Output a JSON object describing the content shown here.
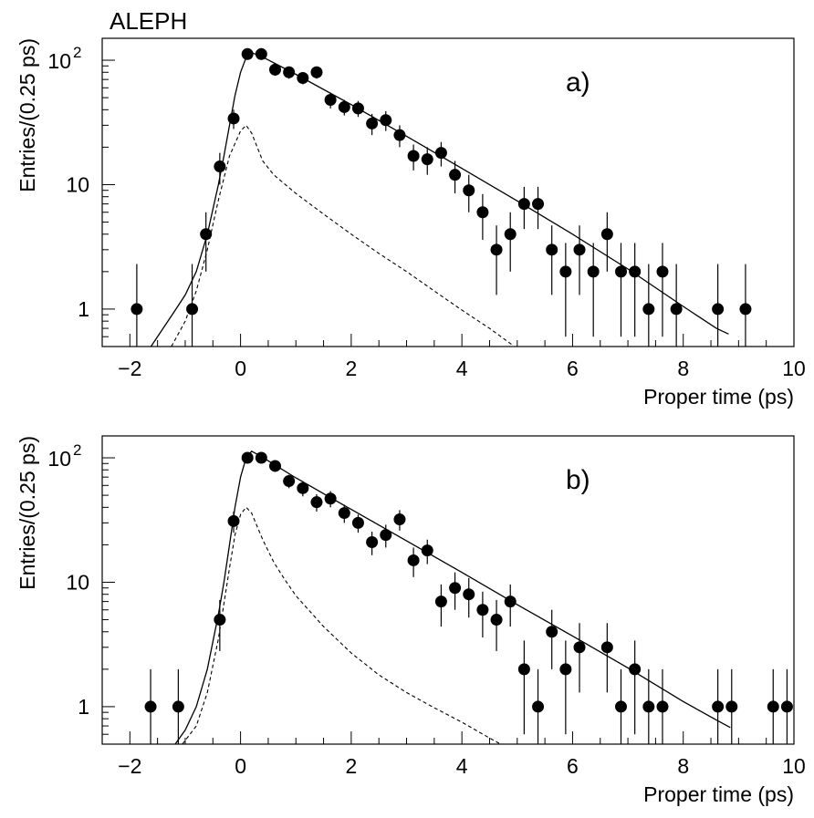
{
  "experiment_label": "ALEPH",
  "chart_data": [
    {
      "type": "scatter",
      "panel_label": "a)",
      "xlabel": "Proper time (ps)",
      "ylabel": "Entries/(0.25 ps)",
      "xlim": [
        -2.5,
        10
      ],
      "ylim": [
        0.5,
        150
      ],
      "yscale": "log",
      "x_ticks": [
        -2,
        0,
        2,
        4,
        6,
        8,
        10
      ],
      "y_ticks": [
        {
          "value": 1,
          "label": "1"
        },
        {
          "value": 10,
          "label": "10"
        },
        {
          "value": 100,
          "label": "10",
          "exponent": "2"
        }
      ],
      "points": [
        {
          "x": -1.875,
          "y": 1,
          "lo": 0.5,
          "hi": 2.3
        },
        {
          "x": -0.875,
          "y": 1,
          "lo": 0.5,
          "hi": 2.3
        },
        {
          "x": -0.625,
          "y": 4,
          "lo": 2,
          "hi": 6
        },
        {
          "x": -0.375,
          "y": 14,
          "lo": 10,
          "hi": 18
        },
        {
          "x": -0.125,
          "y": 34,
          "lo": 28,
          "hi": 40
        },
        {
          "x": 0.125,
          "y": 112,
          "lo": 101,
          "hi": 123
        },
        {
          "x": 0.375,
          "y": 112,
          "lo": 101,
          "hi": 123
        },
        {
          "x": 0.625,
          "y": 84,
          "lo": 75,
          "hi": 93
        },
        {
          "x": 0.875,
          "y": 80,
          "lo": 71,
          "hi": 89
        },
        {
          "x": 1.125,
          "y": 72,
          "lo": 64,
          "hi": 80
        },
        {
          "x": 1.375,
          "y": 80,
          "lo": 71,
          "hi": 89
        },
        {
          "x": 1.625,
          "y": 48,
          "lo": 41,
          "hi": 55
        },
        {
          "x": 1.875,
          "y": 42,
          "lo": 36,
          "hi": 48
        },
        {
          "x": 2.125,
          "y": 41,
          "lo": 35,
          "hi": 47
        },
        {
          "x": 2.375,
          "y": 31,
          "lo": 25,
          "hi": 37
        },
        {
          "x": 2.625,
          "y": 33,
          "lo": 27,
          "hi": 39
        },
        {
          "x": 2.875,
          "y": 25,
          "lo": 20,
          "hi": 30
        },
        {
          "x": 3.125,
          "y": 17,
          "lo": 13,
          "hi": 21
        },
        {
          "x": 3.375,
          "y": 16,
          "lo": 12,
          "hi": 20
        },
        {
          "x": 3.625,
          "y": 18,
          "lo": 14,
          "hi": 22
        },
        {
          "x": 3.875,
          "y": 12,
          "lo": 8.5,
          "hi": 15.5
        },
        {
          "x": 4.125,
          "y": 9,
          "lo": 6,
          "hi": 12
        },
        {
          "x": 4.375,
          "y": 6,
          "lo": 3.6,
          "hi": 8.4
        },
        {
          "x": 4.625,
          "y": 3,
          "lo": 1.3,
          "hi": 4.7
        },
        {
          "x": 4.875,
          "y": 4,
          "lo": 2,
          "hi": 6
        },
        {
          "x": 5.125,
          "y": 7,
          "lo": 4.4,
          "hi": 9.6
        },
        {
          "x": 5.375,
          "y": 7,
          "lo": 4.4,
          "hi": 9.6
        },
        {
          "x": 5.625,
          "y": 3,
          "lo": 1.3,
          "hi": 4.7
        },
        {
          "x": 5.875,
          "y": 2,
          "lo": 0.6,
          "hi": 3.4
        },
        {
          "x": 6.125,
          "y": 3,
          "lo": 1.3,
          "hi": 4.7
        },
        {
          "x": 6.375,
          "y": 2,
          "lo": 0.6,
          "hi": 3.4
        },
        {
          "x": 6.625,
          "y": 4,
          "lo": 2,
          "hi": 6
        },
        {
          "x": 6.875,
          "y": 2,
          "lo": 0.6,
          "hi": 3.4
        },
        {
          "x": 7.125,
          "y": 2,
          "lo": 0.6,
          "hi": 3.4
        },
        {
          "x": 7.375,
          "y": 1,
          "lo": 0.5,
          "hi": 2.3
        },
        {
          "x": 7.625,
          "y": 2,
          "lo": 0.6,
          "hi": 3.4
        },
        {
          "x": 7.875,
          "y": 1,
          "lo": 0.5,
          "hi": 2.3
        },
        {
          "x": 8.625,
          "y": 1,
          "lo": 0.5,
          "hi": 2.3
        },
        {
          "x": 9.125,
          "y": 1,
          "lo": 0.5,
          "hi": 2.3
        }
      ],
      "fit_curve": [
        [
          -1.62,
          0.5
        ],
        [
          -1.4,
          0.7
        ],
        [
          -1.2,
          0.95
        ],
        [
          -1.0,
          1.3
        ],
        [
          -0.8,
          2.0
        ],
        [
          -0.6,
          4.0
        ],
        [
          -0.4,
          10
        ],
        [
          -0.3,
          17
        ],
        [
          -0.2,
          30
        ],
        [
          -0.1,
          52
        ],
        [
          0.0,
          80
        ],
        [
          0.1,
          105
        ],
        [
          0.2,
          115
        ],
        [
          0.4,
          106
        ],
        [
          1.0,
          77
        ],
        [
          2.0,
          44
        ],
        [
          3.0,
          24.5
        ],
        [
          4.0,
          13.5
        ],
        [
          5.0,
          7.4
        ],
        [
          6.0,
          4.0
        ],
        [
          7.0,
          2.1
        ],
        [
          8.0,
          1.05
        ],
        [
          8.6,
          0.7
        ],
        [
          8.82,
          0.63
        ]
      ],
      "background_curve": [
        [
          -1.25,
          0.5
        ],
        [
          -1.0,
          0.8
        ],
        [
          -0.8,
          1.4
        ],
        [
          -0.6,
          3.0
        ],
        [
          -0.4,
          7.5
        ],
        [
          -0.2,
          17
        ],
        [
          0.0,
          27
        ],
        [
          0.1,
          30
        ],
        [
          0.2,
          26
        ],
        [
          0.4,
          15.5
        ],
        [
          0.6,
          12
        ],
        [
          1.0,
          8.5
        ],
        [
          1.5,
          5.8
        ],
        [
          2.0,
          4.0
        ],
        [
          2.5,
          2.8
        ],
        [
          3.0,
          2.0
        ],
        [
          3.5,
          1.4
        ],
        [
          4.0,
          0.98
        ],
        [
          4.5,
          0.7
        ],
        [
          4.9,
          0.52
        ]
      ]
    },
    {
      "type": "scatter",
      "panel_label": "b)",
      "xlabel": "Proper time (ps)",
      "ylabel": "Entries/(0.25 ps)",
      "xlim": [
        -2.5,
        10
      ],
      "ylim": [
        0.5,
        150
      ],
      "yscale": "log",
      "x_ticks": [
        -2,
        0,
        2,
        4,
        6,
        8,
        10
      ],
      "y_ticks": [
        {
          "value": 1,
          "label": "1"
        },
        {
          "value": 10,
          "label": "10"
        },
        {
          "value": 100,
          "label": "10",
          "exponent": "2"
        }
      ],
      "points": [
        {
          "x": -1.625,
          "y": 1,
          "lo": 0.5,
          "hi": 2.0
        },
        {
          "x": -1.125,
          "y": 1,
          "lo": 0.5,
          "hi": 2.0
        },
        {
          "x": -0.375,
          "y": 5,
          "lo": 2.8,
          "hi": 7.2
        },
        {
          "x": -0.125,
          "y": 31,
          "lo": 25,
          "hi": 37
        },
        {
          "x": 0.125,
          "y": 100,
          "lo": 90,
          "hi": 110
        },
        {
          "x": 0.375,
          "y": 100,
          "lo": 90,
          "hi": 110
        },
        {
          "x": 0.625,
          "y": 86,
          "lo": 77,
          "hi": 95
        },
        {
          "x": 0.875,
          "y": 65,
          "lo": 57,
          "hi": 73
        },
        {
          "x": 1.125,
          "y": 57,
          "lo": 49,
          "hi": 65
        },
        {
          "x": 1.375,
          "y": 44,
          "lo": 37,
          "hi": 51
        },
        {
          "x": 1.625,
          "y": 47,
          "lo": 40,
          "hi": 54
        },
        {
          "x": 1.875,
          "y": 36,
          "lo": 30,
          "hi": 42
        },
        {
          "x": 2.125,
          "y": 30,
          "lo": 25,
          "hi": 35
        },
        {
          "x": 2.375,
          "y": 21,
          "lo": 16.5,
          "hi": 25.5
        },
        {
          "x": 2.625,
          "y": 24,
          "lo": 19,
          "hi": 29
        },
        {
          "x": 2.875,
          "y": 32,
          "lo": 26,
          "hi": 38
        },
        {
          "x": 3.125,
          "y": 15,
          "lo": 11,
          "hi": 19
        },
        {
          "x": 3.375,
          "y": 18,
          "lo": 14,
          "hi": 22
        },
        {
          "x": 3.625,
          "y": 7,
          "lo": 4.4,
          "hi": 9.6
        },
        {
          "x": 3.875,
          "y": 9,
          "lo": 6,
          "hi": 12
        },
        {
          "x": 4.125,
          "y": 8,
          "lo": 5.2,
          "hi": 10.8
        },
        {
          "x": 4.375,
          "y": 6,
          "lo": 3.6,
          "hi": 8.4
        },
        {
          "x": 4.625,
          "y": 5,
          "lo": 2.8,
          "hi": 7.2
        },
        {
          "x": 4.875,
          "y": 7,
          "lo": 4.4,
          "hi": 9.6
        },
        {
          "x": 5.125,
          "y": 2,
          "lo": 0.6,
          "hi": 3.4
        },
        {
          "x": 5.375,
          "y": 1,
          "lo": 0.5,
          "hi": 2.0
        },
        {
          "x": 5.625,
          "y": 4,
          "lo": 2,
          "hi": 6
        },
        {
          "x": 5.875,
          "y": 2,
          "lo": 0.6,
          "hi": 3.4
        },
        {
          "x": 6.125,
          "y": 3,
          "lo": 1.3,
          "hi": 4.7
        },
        {
          "x": 6.625,
          "y": 3,
          "lo": 1.3,
          "hi": 4.7
        },
        {
          "x": 6.875,
          "y": 1,
          "lo": 0.5,
          "hi": 2.0
        },
        {
          "x": 7.125,
          "y": 2,
          "lo": 0.6,
          "hi": 3.4
        },
        {
          "x": 7.375,
          "y": 1,
          "lo": 0.5,
          "hi": 2.0
        },
        {
          "x": 7.625,
          "y": 1,
          "lo": 0.5,
          "hi": 2.0
        },
        {
          "x": 8.625,
          "y": 1,
          "lo": 0.5,
          "hi": 2.0
        },
        {
          "x": 8.875,
          "y": 1,
          "lo": 0.5,
          "hi": 2.0
        },
        {
          "x": 9.625,
          "y": 1,
          "lo": 0.5,
          "hi": 2.0
        },
        {
          "x": 9.875,
          "y": 1,
          "lo": 0.5,
          "hi": 2.0
        }
      ],
      "fit_curve": [
        [
          -1.18,
          0.5
        ],
        [
          -1.0,
          0.65
        ],
        [
          -0.8,
          1.0
        ],
        [
          -0.6,
          2.0
        ],
        [
          -0.4,
          5.5
        ],
        [
          -0.3,
          10
        ],
        [
          -0.2,
          20
        ],
        [
          -0.1,
          40
        ],
        [
          0.0,
          70
        ],
        [
          0.1,
          100
        ],
        [
          0.2,
          113
        ],
        [
          0.35,
          104
        ],
        [
          1.0,
          69
        ],
        [
          2.0,
          38.5
        ],
        [
          3.0,
          21.5
        ],
        [
          4.0,
          12
        ],
        [
          5.0,
          6.6
        ],
        [
          6.0,
          3.7
        ],
        [
          7.0,
          2.05
        ],
        [
          8.0,
          1.1
        ],
        [
          8.6,
          0.78
        ],
        [
          8.85,
          0.68
        ]
      ],
      "background_curve": [
        [
          -1.05,
          0.5
        ],
        [
          -0.8,
          0.7
        ],
        [
          -0.6,
          1.3
        ],
        [
          -0.4,
          3.5
        ],
        [
          -0.2,
          13
        ],
        [
          -0.1,
          24
        ],
        [
          0.0,
          35
        ],
        [
          0.1,
          40
        ],
        [
          0.2,
          36
        ],
        [
          0.4,
          22
        ],
        [
          0.6,
          14.5
        ],
        [
          0.8,
          10.5
        ],
        [
          1.0,
          7.8
        ],
        [
          1.5,
          4.4
        ],
        [
          2.0,
          2.7
        ],
        [
          2.5,
          1.8
        ],
        [
          3.0,
          1.3
        ],
        [
          3.5,
          0.98
        ],
        [
          4.0,
          0.75
        ],
        [
          4.5,
          0.56
        ],
        [
          4.7,
          0.5
        ]
      ]
    }
  ]
}
